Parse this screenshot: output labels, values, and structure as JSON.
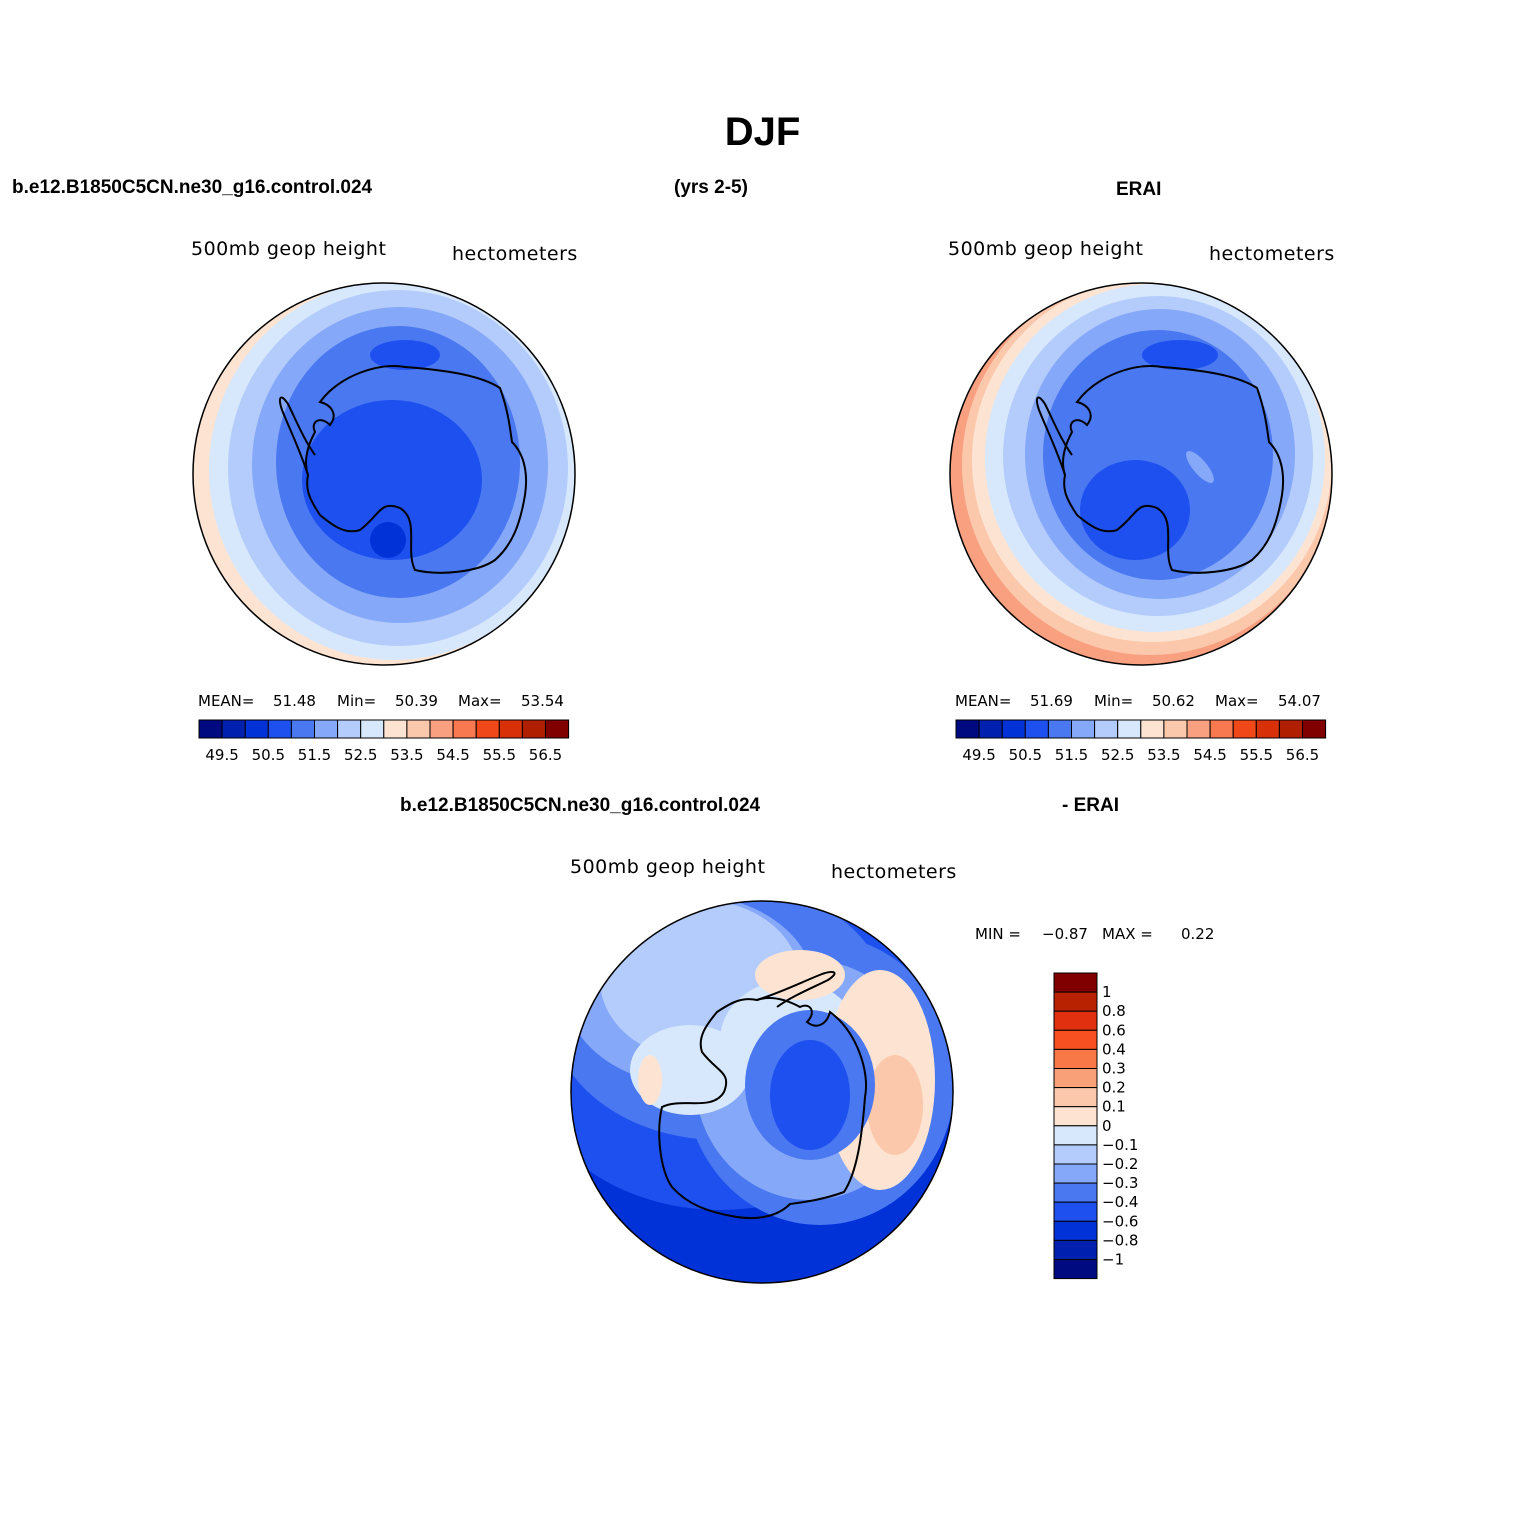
{
  "figure": {
    "title": "DJF",
    "top_left_header": "b.e12.B1850C5CN.ne30_g16.control.024",
    "top_center_header": "(yrs 2-5)",
    "top_right_header": "ERAI",
    "bottom_header_left": "b.e12.B1850C5CN.ne30_g16.control.024",
    "bottom_header_right": "- ERAI"
  },
  "panels": {
    "model": {
      "variable": "500mb  geop  height",
      "units": "hectometers",
      "mean_label": "MEAN=",
      "mean_value": "51.48",
      "min_label": "Min=",
      "min_value": "50.39",
      "max_label": "Max=",
      "max_value": "53.54"
    },
    "obs": {
      "variable": "500mb  geop  height",
      "units": "hectometers",
      "mean_label": "MEAN=",
      "mean_value": "51.69",
      "min_label": "Min=",
      "min_value": "50.62",
      "max_label": "Max=",
      "max_value": "54.07"
    },
    "diff": {
      "variable": "500mb  geop  height",
      "units": "hectometers",
      "min_label": "MIN =",
      "min_value": "−0.87",
      "max_label": "MAX =",
      "max_value": "0.22"
    }
  },
  "colorbars": {
    "absolute": {
      "colors": [
        "#000a80",
        "#0020b0",
        "#0032d8",
        "#1e50f0",
        "#4a78f0",
        "#86a8f8",
        "#b4ccfb",
        "#d8e8fc",
        "#fde4d2",
        "#fcc8ac",
        "#f8a080",
        "#f87850",
        "#f04818",
        "#d83008",
        "#b02000",
        "#800000"
      ],
      "tick_labels": [
        "49.5",
        "50.5",
        "51.5",
        "52.5",
        "53.5",
        "54.5",
        "55.5",
        "56.5"
      ]
    },
    "difference": {
      "colors_top_to_bottom": [
        "#800000",
        "#b82200",
        "#e03010",
        "#f85020",
        "#f87848",
        "#f8a078",
        "#fcc8ac",
        "#fde4d2",
        "#d8e8fc",
        "#b4ccfb",
        "#86a8f8",
        "#4a78f0",
        "#1e50f0",
        "#0032d8",
        "#0020b0",
        "#000a80"
      ],
      "tick_labels": [
        "1",
        "0.8",
        "0.6",
        "0.4",
        "0.3",
        "0.2",
        "0.1",
        "0",
        "−0.1",
        "−0.2",
        "−0.3",
        "−0.4",
        "−0.6",
        "−0.8",
        "−1"
      ]
    }
  }
}
